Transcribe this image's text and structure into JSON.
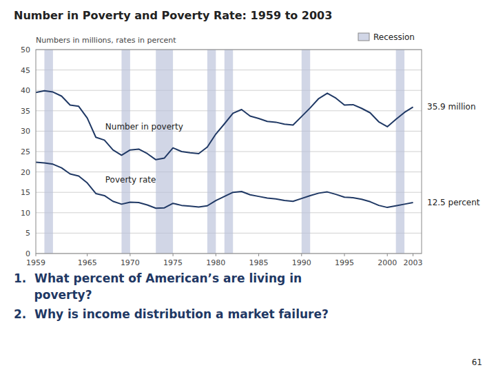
{
  "chart_data": {
    "type": "line",
    "title": "Number in Poverty and Poverty Rate:  1959 to 2003",
    "subtitle": "Numbers in millions, rates in percent",
    "x": [
      1959,
      1960,
      1961,
      1962,
      1963,
      1964,
      1965,
      1966,
      1967,
      1968,
      1969,
      1970,
      1971,
      1972,
      1973,
      1974,
      1975,
      1976,
      1977,
      1978,
      1979,
      1980,
      1981,
      1982,
      1983,
      1984,
      1985,
      1986,
      1987,
      1988,
      1989,
      1990,
      1991,
      1992,
      1993,
      1994,
      1995,
      1996,
      1997,
      1998,
      1999,
      2000,
      2001,
      2002,
      2003
    ],
    "series": [
      {
        "name": "Number in poverty",
        "color": "#1F3864",
        "end_label": "35.9 million",
        "values": [
          39.5,
          39.9,
          39.6,
          38.6,
          36.4,
          36.1,
          33.2,
          28.5,
          27.8,
          25.4,
          24.1,
          25.4,
          25.6,
          24.5,
          23.0,
          23.4,
          25.9,
          25.0,
          24.7,
          24.5,
          26.1,
          29.3,
          31.8,
          34.4,
          35.3,
          33.7,
          33.1,
          32.4,
          32.2,
          31.7,
          31.5,
          33.6,
          35.7,
          38.0,
          39.3,
          38.1,
          36.4,
          36.5,
          35.6,
          34.5,
          32.3,
          31.1,
          32.9,
          34.6,
          35.9
        ]
      },
      {
        "name": "Poverty rate",
        "color": "#1F3864",
        "end_label": "12.5 percent",
        "values": [
          22.4,
          22.2,
          21.9,
          21.0,
          19.5,
          19.0,
          17.3,
          14.7,
          14.2,
          12.8,
          12.1,
          12.6,
          12.5,
          11.9,
          11.1,
          11.2,
          12.3,
          11.8,
          11.6,
          11.4,
          11.7,
          13.0,
          14.0,
          15.0,
          15.2,
          14.4,
          14.0,
          13.6,
          13.4,
          13.0,
          12.8,
          13.5,
          14.2,
          14.8,
          15.1,
          14.5,
          13.8,
          13.7,
          13.3,
          12.7,
          11.8,
          11.3,
          11.7,
          12.1,
          12.5
        ]
      }
    ],
    "recessions": {
      "label": "Recession",
      "color": "#b8c0d8",
      "periods": [
        [
          1960,
          1961
        ],
        [
          1969,
          1970
        ],
        [
          1973,
          1975
        ],
        [
          1979,
          1980
        ],
        [
          1981,
          1982
        ],
        [
          1990,
          1991
        ],
        [
          2001,
          2002
        ]
      ]
    },
    "xlim": [
      1959,
      2004
    ],
    "xticks": [
      1959,
      1965,
      1970,
      1975,
      1980,
      1985,
      1990,
      1995,
      2000,
      2003
    ],
    "ylim": [
      0,
      50
    ],
    "yticks": [
      0,
      5,
      10,
      15,
      20,
      25,
      30,
      35,
      40,
      45,
      50
    ],
    "grid": true,
    "legend": "upper right",
    "questions": [
      "1.  What percent of American’s are living in",
      "     poverty?",
      "2.  Why is income distribution a market failure?"
    ],
    "page_number": "61"
  }
}
